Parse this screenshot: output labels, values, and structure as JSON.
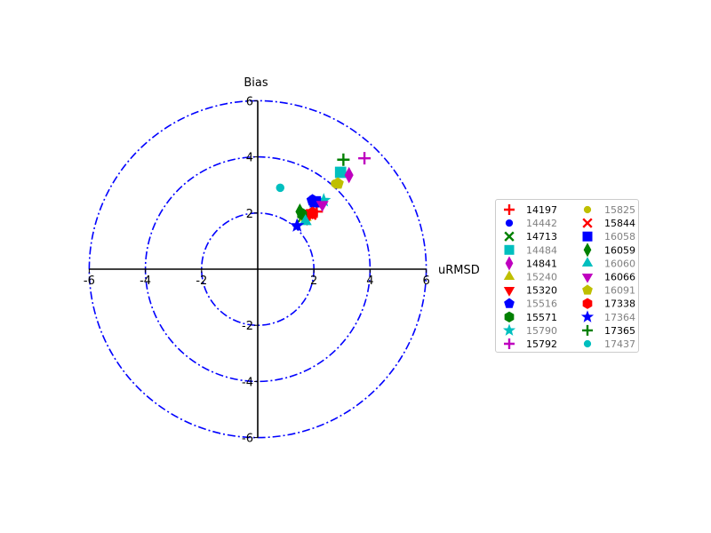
{
  "chart_data": {
    "type": "scatter",
    "title": "",
    "xlabel": "uRMSD",
    "ylabel": "Bias",
    "xlim": [
      -6,
      6
    ],
    "ylim": [
      -6,
      6
    ],
    "circle_radii": [
      2,
      4,
      6
    ],
    "circle_style": "dash-dot",
    "circle_color": "#0000ff",
    "x_ticks": [
      "-6",
      "-4",
      "-2",
      "2",
      "4",
      "6"
    ],
    "y_ticks": [
      "6",
      "4",
      "2",
      "-2",
      "-4",
      "-6"
    ],
    "legend_position": "right",
    "series": [
      {
        "name": "14197",
        "marker": "plus",
        "color": "#ff0000",
        "x": 2.1,
        "y": 2.05,
        "dim": false
      },
      {
        "name": "14442",
        "marker": "circle",
        "color": "#0000ff",
        "x": 1.95,
        "y": 2.5,
        "dim": true
      },
      {
        "name": "14713",
        "marker": "x",
        "color": "#008000",
        "x": 1.6,
        "y": 1.85,
        "dim": false
      },
      {
        "name": "14484",
        "marker": "square",
        "color": "#00bfbf",
        "x": 2.95,
        "y": 3.45,
        "dim": true
      },
      {
        "name": "14841",
        "marker": "diamond",
        "color": "#bf00bf",
        "x": 3.25,
        "y": 3.35,
        "dim": false
      },
      {
        "name": "15240",
        "marker": "triangle-up",
        "color": "#bfbf00",
        "x": 1.7,
        "y": 1.85,
        "dim": true
      },
      {
        "name": "15320",
        "marker": "triangle-down",
        "color": "#ff0000",
        "x": 1.75,
        "y": 1.8,
        "dim": false
      },
      {
        "name": "15516",
        "marker": "pentagon",
        "color": "#0000ff",
        "x": 1.95,
        "y": 2.45,
        "dim": true
      },
      {
        "name": "15571",
        "marker": "hexagon",
        "color": "#008000",
        "x": 1.6,
        "y": 1.95,
        "dim": false
      },
      {
        "name": "15790",
        "marker": "star",
        "color": "#00bfbf",
        "x": 2.35,
        "y": 2.45,
        "dim": true
      },
      {
        "name": "15792",
        "marker": "plus",
        "color": "#bf00bf",
        "x": 3.8,
        "y": 3.95,
        "dim": false
      },
      {
        "name": "15825",
        "marker": "circle",
        "color": "#bfbf00",
        "x": 2.75,
        "y": 3.05,
        "dim": true
      },
      {
        "name": "15844",
        "marker": "x",
        "color": "#ff0000",
        "x": 1.9,
        "y": 1.95,
        "dim": false
      },
      {
        "name": "16058",
        "marker": "square",
        "color": "#0000ff",
        "x": 2.05,
        "y": 2.4,
        "dim": true
      },
      {
        "name": "16059",
        "marker": "diamond",
        "color": "#008000",
        "x": 1.5,
        "y": 2.05,
        "dim": false
      },
      {
        "name": "16060",
        "marker": "triangle-up",
        "color": "#00bfbf",
        "x": 1.7,
        "y": 1.7,
        "dim": true
      },
      {
        "name": "16066",
        "marker": "triangle-down",
        "color": "#bf00bf",
        "x": 2.3,
        "y": 2.3,
        "dim": false
      },
      {
        "name": "16091",
        "marker": "pentagon",
        "color": "#bfbf00",
        "x": 2.85,
        "y": 3.05,
        "dim": true
      },
      {
        "name": "17338",
        "marker": "hexagon",
        "color": "#ff0000",
        "x": 1.95,
        "y": 2.0,
        "dim": false
      },
      {
        "name": "17364",
        "marker": "star",
        "color": "#0000ff",
        "x": 1.4,
        "y": 1.55,
        "dim": true
      },
      {
        "name": "17365",
        "marker": "plus",
        "color": "#008000",
        "x": 3.05,
        "y": 3.9,
        "dim": false
      },
      {
        "name": "17437",
        "marker": "circle",
        "color": "#00bfbf",
        "x": 0.8,
        "y": 2.9,
        "dim": true
      }
    ]
  }
}
